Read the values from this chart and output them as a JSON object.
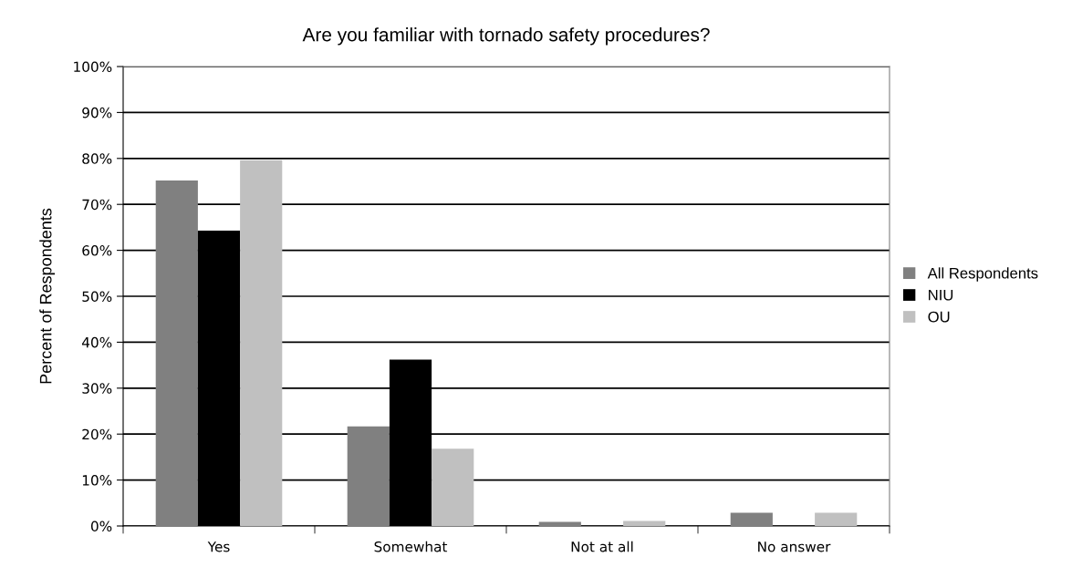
{
  "chart_data": {
    "type": "bar",
    "title": "Are you familiar with tornado safety procedures?",
    "ylabel": "Percent of Respondents",
    "categories": [
      "Yes",
      "Somewhat",
      "Not at all",
      "No answer"
    ],
    "series": [
      {
        "name": "All Respondents",
        "color": "#808080",
        "values": [
          75.2,
          21.7,
          0.9,
          2.9
        ]
      },
      {
        "name": "NIU",
        "color": "#000000",
        "values": [
          64.3,
          36.2,
          0,
          0
        ]
      },
      {
        "name": "OU",
        "color": "#c0c0c0",
        "values": [
          79.6,
          16.8,
          1.1,
          2.9
        ]
      }
    ],
    "ylim": [
      0,
      100
    ],
    "yticks": [
      {
        "value": 0,
        "label": "0%"
      },
      {
        "value": 10,
        "label": "10%"
      },
      {
        "value": 20,
        "label": "20%"
      },
      {
        "value": 30,
        "label": "30%"
      },
      {
        "value": 40,
        "label": "40%"
      },
      {
        "value": 50,
        "label": "50%"
      },
      {
        "value": 60,
        "label": "60%"
      },
      {
        "value": 70,
        "label": "70%"
      },
      {
        "value": 80,
        "label": "80%"
      },
      {
        "value": 90,
        "label": "90%"
      },
      {
        "value": 100,
        "label": "100%"
      }
    ],
    "grid": "y",
    "legend": "right"
  }
}
